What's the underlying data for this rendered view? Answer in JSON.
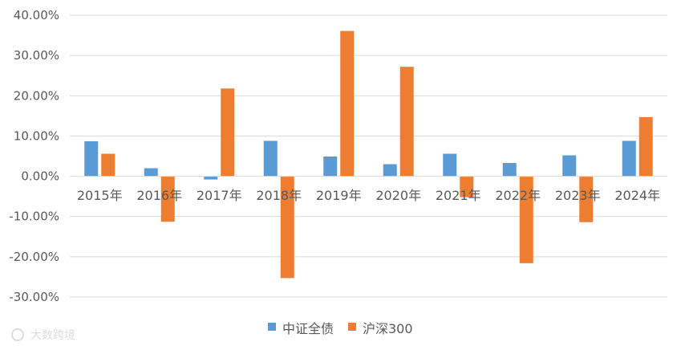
{
  "chart_data": {
    "type": "bar",
    "title": "",
    "xlabel": "",
    "ylabel": "",
    "categories": [
      "2015年",
      "2016年",
      "2017年",
      "2018年",
      "2019年",
      "2020年",
      "2021年",
      "2022年",
      "2023年",
      "2024年"
    ],
    "series": [
      {
        "name": "中证全债",
        "color": "#5b9bd5",
        "values": [
          8.7,
          2.0,
          -0.8,
          8.8,
          4.9,
          3.0,
          5.6,
          3.3,
          5.2,
          8.8
        ]
      },
      {
        "name": "沪深300",
        "color": "#ed7d31",
        "values": [
          5.6,
          -11.3,
          21.8,
          -25.3,
          36.1,
          27.2,
          -5.2,
          -21.6,
          -11.4,
          14.7
        ]
      }
    ],
    "yticks": [
      40,
      30,
      20,
      10,
      0,
      -10,
      -20,
      -30
    ],
    "ytick_labels": [
      "40.00%",
      "30.00%",
      "20.00%",
      "10.00%",
      "0.00%",
      "-10.00%",
      "-20.00%",
      "-30.00%"
    ],
    "ylim": [
      -30,
      40
    ],
    "grid": true,
    "legend_position": "bottom"
  },
  "watermark": "大数跨境"
}
